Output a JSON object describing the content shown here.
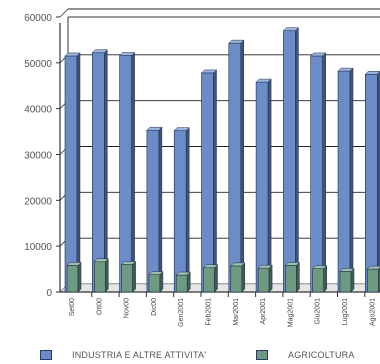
{
  "chart_data": {
    "type": "bar",
    "categories": [
      "Set00",
      "Ott00",
      "Nov00",
      "Dic00",
      "Gen2001",
      "Feb2001",
      "Mar2001",
      "Apr2001",
      "Mag2001",
      "Giu2001",
      "Lug2001",
      "Ago2001"
    ],
    "series": [
      {
        "name": "INDUSTRIA E ALTRE ATTIVITA'",
        "color": "#6b8cc7",
        "values": [
          51500,
          52200,
          51600,
          35300,
          35200,
          47800,
          54300,
          45800,
          57000,
          51500,
          48200,
          47500
        ]
      },
      {
        "name": "AGRICOLTURA",
        "color": "#6e9a82",
        "values": [
          5800,
          6600,
          6000,
          3800,
          3700,
          5300,
          5700,
          5200,
          5800,
          5100,
          4500,
          5000
        ]
      }
    ],
    "y_ticks": [
      "0",
      "10000",
      "20000",
      "30000",
      "40000",
      "50000",
      "60000"
    ],
    "ylim": [
      0,
      60000
    ],
    "grid": true,
    "legend_position": "bottom"
  }
}
